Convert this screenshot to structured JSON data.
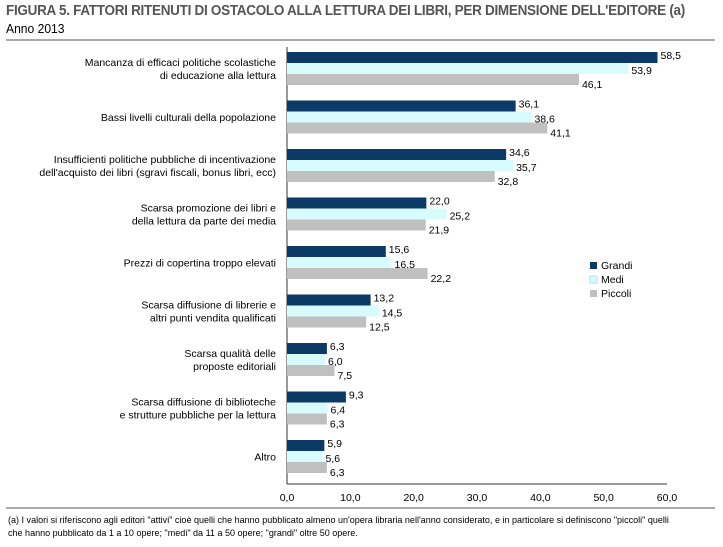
{
  "chart_data": {
    "type": "bar",
    "orientation": "horizontal",
    "title": "FIGURA 5. FATTORI RITENUTI DI OSTACOLO ALLA LETTURA DEI LIBRI, PER DIMENSIONE DELL'EDITORE (a)",
    "subtitle": "Anno 2013",
    "categories": [
      [
        "Mancanza di efficaci politiche scolastiche",
        "di educazione alla lettura"
      ],
      [
        "Bassi livelli culturali della popolazione"
      ],
      [
        "Insufficienti politiche pubbliche di incentivazione",
        "dell'acquisto dei libri (sgravi fiscali, bonus libri, ecc)"
      ],
      [
        "Scarsa promozione dei libri e",
        "della lettura da parte dei media"
      ],
      [
        "Prezzi di copertina troppo elevati"
      ],
      [
        "Scarsa diffusione di librerie e",
        "altri punti vendita qualificati"
      ],
      [
        "Scarsa qualità delle",
        "proposte editoriali"
      ],
      [
        "Scarsa diffusione di biblioteche",
        "e strutture pubbliche per la lettura"
      ],
      [
        "Altro"
      ]
    ],
    "series": [
      {
        "name": "Grandi",
        "color": "#0b3a66",
        "values": [
          58.5,
          36.1,
          34.6,
          22.0,
          15.6,
          13.2,
          6.3,
          9.3,
          5.9
        ]
      },
      {
        "name": "Medi",
        "color": "#d8fbfd",
        "values": [
          53.9,
          38.6,
          35.7,
          25.2,
          16.5,
          14.5,
          6.0,
          6.4,
          5.6
        ]
      },
      {
        "name": "Piccoli",
        "color": "#c0c0c0",
        "values": [
          46.1,
          41.1,
          32.8,
          21.9,
          22.2,
          12.5,
          7.5,
          6.3,
          6.3
        ]
      }
    ],
    "xlim": [
      0,
      60
    ],
    "xticks": [
      "0,0",
      "10,0",
      "20,0",
      "30,0",
      "40,0",
      "50,0",
      "60,0"
    ],
    "grid": false,
    "legend": "right"
  },
  "footnote": "(a) I valori si riferiscono agli editori \"attivi\" cioè quelli che hanno pubblicato almeno un'opera libraria nell'anno considerato, e in particolare si definiscono \"piccoli\" quelli che hanno pubblicato da 1 a 10 opere; \"medi\" da 11 a 50 opere; \"grandi\" oltre 50 opere."
}
